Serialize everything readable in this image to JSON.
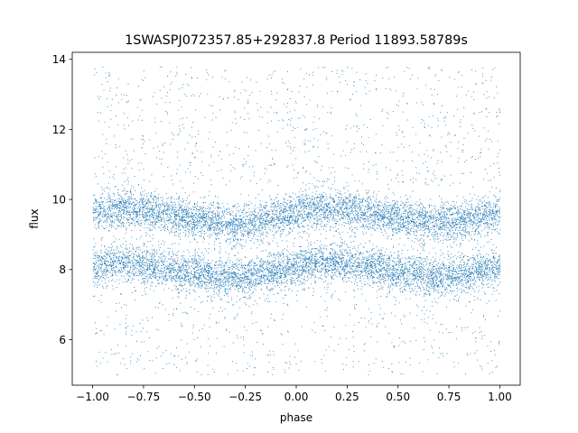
{
  "chart_data": {
    "type": "scatter",
    "title": "1SWASPJ072357.85+292837.8 Period 11893.58789s",
    "xlabel": "phase",
    "ylabel": "flux",
    "xlim": [
      -1.1,
      1.1
    ],
    "ylim": [
      4.7,
      14.2
    ],
    "xticks": [
      -1.0,
      -0.75,
      -0.5,
      -0.25,
      0.0,
      0.25,
      0.5,
      0.75,
      1.0
    ],
    "xtick_labels": [
      "−1.00",
      "−0.75",
      "−0.50",
      "−0.25",
      "0.00",
      "0.25",
      "0.50",
      "0.75",
      "1.00"
    ],
    "yticks": [
      6,
      8,
      10,
      12,
      14
    ],
    "ytick_labels": [
      "6",
      "8",
      "10",
      "12",
      "14"
    ],
    "grid": false,
    "marker_color": "#1f77b4",
    "series": [
      {
        "band": "upper",
        "x": [
          -1.0,
          -0.9,
          -0.8,
          -0.7,
          -0.6,
          -0.5,
          -0.4,
          -0.3,
          -0.2,
          -0.1,
          0.0,
          0.1,
          0.2,
          0.3,
          0.4,
          0.5,
          0.6,
          0.7,
          0.8,
          0.9,
          1.0
        ],
        "y": [
          9.65,
          9.7,
          9.72,
          9.65,
          9.55,
          9.45,
          9.35,
          9.3,
          9.38,
          9.5,
          9.65,
          9.75,
          9.75,
          9.68,
          9.58,
          9.48,
          9.38,
          9.32,
          9.38,
          9.5,
          9.65
        ],
        "spread": 0.28
      },
      {
        "band": "lower",
        "x": [
          -1.0,
          -0.9,
          -0.8,
          -0.7,
          -0.6,
          -0.5,
          -0.4,
          -0.3,
          -0.2,
          -0.1,
          0.0,
          0.1,
          0.2,
          0.3,
          0.4,
          0.5,
          0.6,
          0.7,
          0.8,
          0.9,
          1.0
        ],
        "y": [
          8.1,
          8.2,
          8.2,
          8.12,
          8.0,
          7.9,
          7.82,
          7.78,
          7.85,
          7.98,
          8.12,
          8.22,
          8.22,
          8.15,
          8.05,
          7.95,
          7.85,
          7.78,
          7.85,
          7.98,
          8.1
        ],
        "spread": 0.28
      },
      {
        "band": "outliers",
        "x_range": [
          -1.0,
          1.0
        ],
        "y_range": [
          5.0,
          13.8
        ]
      }
    ]
  }
}
